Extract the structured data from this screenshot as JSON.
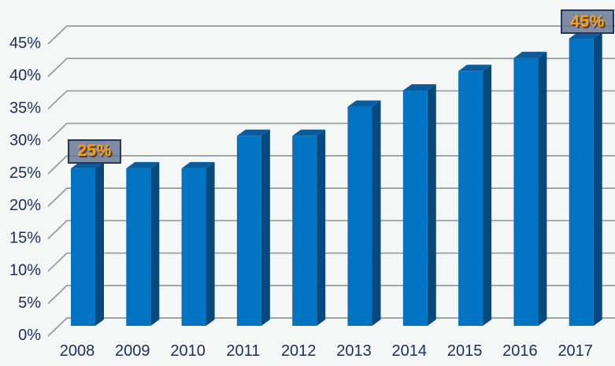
{
  "chart_data": {
    "type": "bar",
    "style": "3d",
    "title": "",
    "xlabel": "",
    "ylabel": "",
    "categories": [
      "2008",
      "2009",
      "2010",
      "2011",
      "2012",
      "2013",
      "2014",
      "2015",
      "2016",
      "2017"
    ],
    "values": [
      25,
      25,
      25,
      30,
      30,
      34.5,
      37,
      40,
      42,
      45
    ],
    "ylim": [
      0,
      45
    ],
    "ytick_step": 5,
    "ytick_labels": [
      "0%",
      "5%",
      "10%",
      "15%",
      "20%",
      "25%",
      "30%",
      "35%",
      "40%",
      "45%"
    ],
    "grid": true,
    "legend": false,
    "data_labels": [
      {
        "category": "2008",
        "text": "25%"
      },
      {
        "category": "2017",
        "text": "45%"
      }
    ],
    "colors": {
      "background": "#f5f6f6",
      "gridline": "#999999",
      "axis_text": "#1b2f5c",
      "bar_front": "#0074c2",
      "bar_top": "#0b5c9c",
      "bar_side": "#07497b",
      "label_box_fill": "rgba(104,119,146,0.84)",
      "label_box_border": "#1f3864",
      "label_text": "#f9a01b",
      "label_text_shadow": "rgba(80,50,15,0.85)"
    }
  }
}
